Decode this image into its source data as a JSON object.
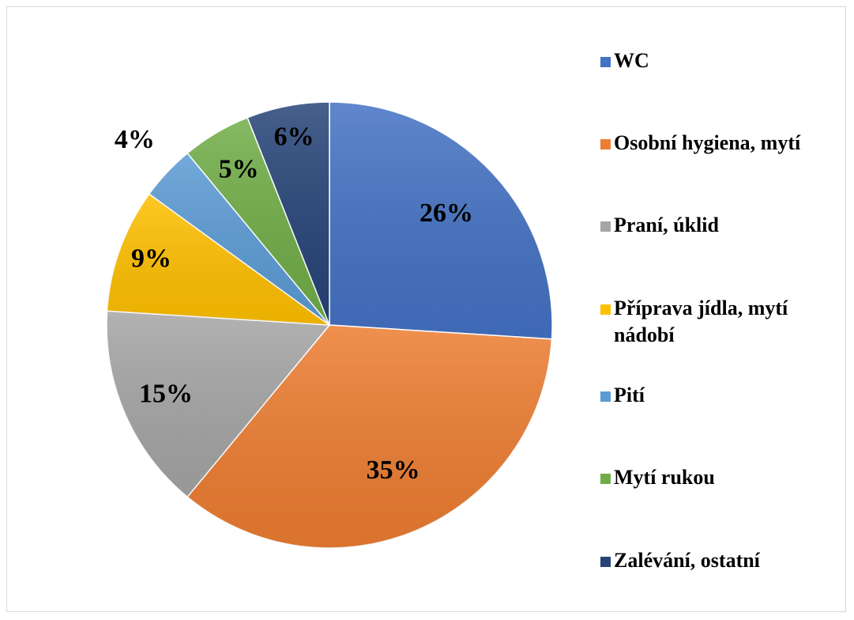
{
  "chart_data": {
    "type": "pie",
    "categories": [
      "WC",
      "Osobní hygiena, mytí",
      "Praní, úklid",
      "Příprava jídla, mytí nádobí",
      "Pití",
      "Mytí rukou",
      "Zalévání, ostatní"
    ],
    "values": [
      26,
      35,
      15,
      9,
      4,
      5,
      6
    ],
    "value_labels": [
      "26%",
      "35%",
      "15%",
      "9%",
      "4%",
      "5%",
      "6%"
    ],
    "colors": [
      "#4472c4",
      "#ed7d31",
      "#a5a5a5",
      "#ffc000",
      "#5b9bd5",
      "#70ad47",
      "#264478"
    ],
    "legend": "right"
  }
}
